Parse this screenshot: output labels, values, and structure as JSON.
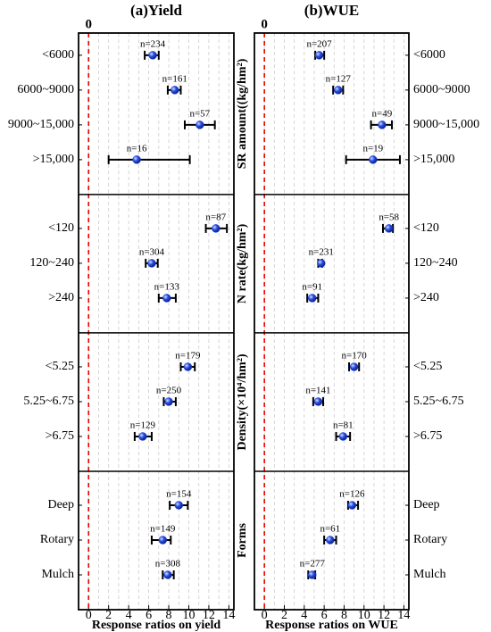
{
  "chart_data": [
    {
      "type": "forest",
      "title": "(a)Yield",
      "xlabel": "Response ratios on yield",
      "xlim": [
        -1,
        14.5
      ],
      "xticks": [
        0,
        2,
        4,
        6,
        8,
        10,
        12,
        14
      ],
      "minor_xticks": [
        1,
        3,
        5,
        7,
        9,
        11,
        13
      ],
      "ref_line": 0,
      "marker_color": "#1f3fd8",
      "groups": [
        {
          "categories": [
            "<6000",
            "6000~9000",
            "9000~15,000",
            ">15,000"
          ],
          "values": [
            6.4,
            8.6,
            11.1,
            4.8
          ],
          "lower": [
            5.6,
            7.9,
            9.6,
            2.0
          ],
          "upper": [
            7.0,
            9.2,
            12.6,
            10.1
          ],
          "n_labels": [
            "n=234",
            "n=161",
            "n=57",
            "n=16"
          ]
        },
        {
          "categories": [
            "<120",
            "120~240",
            ">240"
          ],
          "values": [
            12.7,
            6.3,
            7.8
          ],
          "lower": [
            11.7,
            5.7,
            7.0
          ],
          "upper": [
            13.8,
            6.9,
            8.7
          ],
          "n_labels": [
            "n=87",
            "n=304",
            "n=133"
          ]
        },
        {
          "categories": [
            "<5.25",
            "5.25~6.75",
            ">6.75"
          ],
          "values": [
            9.9,
            8.0,
            5.4
          ],
          "lower": [
            9.2,
            7.5,
            4.6
          ],
          "upper": [
            10.6,
            8.7,
            6.3
          ],
          "n_labels": [
            "n=179",
            "n=250",
            "n=129"
          ]
        },
        {
          "categories": [
            "Deep",
            "Rotary",
            "Mulch"
          ],
          "values": [
            9.0,
            7.4,
            7.9
          ],
          "lower": [
            8.1,
            6.3,
            7.4
          ],
          "upper": [
            9.9,
            8.2,
            8.5
          ],
          "n_labels": [
            "n=154",
            "n=149",
            "n=308"
          ]
        }
      ]
    },
    {
      "type": "forest",
      "title": "(b)WUE",
      "xlabel": "Response ratios on WUE",
      "xlim": [
        -1,
        14.5
      ],
      "xticks": [
        0,
        2,
        4,
        6,
        8,
        10,
        12,
        14
      ],
      "minor_xticks": [
        1,
        3,
        5,
        7,
        9,
        11,
        13
      ],
      "ref_line": 0,
      "marker_color": "#1f3fd8",
      "groups": [
        {
          "label": "SR amount((kg/hm²)",
          "categories": [
            "<6000",
            "6000~9000",
            "9000~15,000",
            ">15,000"
          ],
          "values": [
            5.5,
            7.4,
            11.8,
            10.9
          ],
          "lower": [
            5.1,
            6.9,
            10.7,
            8.2
          ],
          "upper": [
            6.0,
            7.9,
            12.8,
            13.6
          ],
          "n_labels": [
            "n=207",
            "n=127",
            "n=49",
            "n=19"
          ]
        },
        {
          "label": "N rate(kg/hm²)",
          "categories": [
            "<120",
            "120~240",
            ">240"
          ],
          "values": [
            12.5,
            5.7,
            4.8
          ],
          "lower": [
            11.9,
            5.4,
            4.3
          ],
          "upper": [
            12.9,
            5.8,
            5.4
          ],
          "n_labels": [
            "n=58",
            "n=231",
            "n=91"
          ]
        },
        {
          "label": "Density(×10⁴/hm²)",
          "categories": [
            "<5.25",
            "5.25~6.75",
            ">6.75"
          ],
          "values": [
            9.0,
            5.4,
            7.9
          ],
          "lower": [
            8.5,
            4.9,
            7.2
          ],
          "upper": [
            9.5,
            5.9,
            8.6
          ],
          "n_labels": [
            "n=170",
            "n=141",
            "n=81"
          ]
        },
        {
          "label": "Forms",
          "categories": [
            "Deep",
            "Rotary",
            "Mulch"
          ],
          "values": [
            8.8,
            6.6,
            4.8
          ],
          "lower": [
            8.4,
            6.0,
            4.4
          ],
          "upper": [
            9.4,
            7.2,
            5.1
          ],
          "n_labels": [
            "n=126",
            "n=61",
            "n=277"
          ]
        }
      ]
    }
  ]
}
